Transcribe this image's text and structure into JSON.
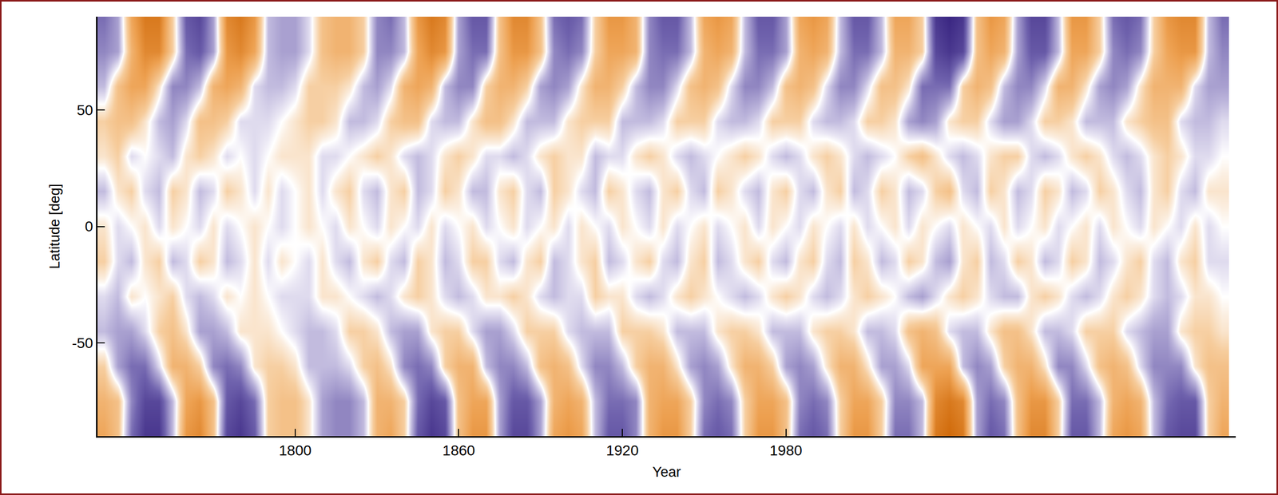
{
  "chart_data": {
    "type": "heatmap",
    "x_label": "Year",
    "y_label": "Latitude [deg]",
    "xlim": [
      1727.5,
      2145
    ],
    "xticks": [
      1800,
      1860,
      1920,
      1980
    ],
    "ylim": [
      -90,
      90
    ],
    "yticks": [
      -50,
      0,
      50
    ],
    "grid": false,
    "zlim": [
      -9,
      9
    ],
    "x": [
      1730,
      1735,
      1740,
      1745,
      1750,
      1755,
      1760,
      1765,
      1770,
      1775,
      1780,
      1785,
      1790,
      1795,
      1800,
      1805,
      1810,
      1815,
      1820,
      1825,
      1830,
      1835,
      1840,
      1845,
      1850,
      1855,
      1860,
      1865,
      1870,
      1875,
      1880,
      1885,
      1890,
      1895,
      1900,
      1905,
      1910,
      1915,
      1920,
      1925,
      1930,
      1935,
      1940,
      1945,
      1950,
      1955,
      1960,
      1965,
      1970,
      1975,
      1980,
      1985,
      1990,
      1995,
      2000,
      2005,
      2010,
      2015,
      2020,
      2025,
      2030,
      2035,
      2040,
      2045,
      2050,
      2055,
      2060,
      2065,
      2070,
      2075,
      2080,
      2085,
      2090,
      2095,
      2100,
      2105,
      2110,
      2115,
      2120,
      2125,
      2130,
      2135,
      2140
    ],
    "y": [
      -90,
      -75,
      -60,
      -45,
      -30,
      -15,
      0,
      15,
      30,
      45,
      60,
      75,
      90
    ],
    "z": [
      [
        5,
        3,
        -5,
        -8,
        -8,
        -2,
        6,
        7,
        3,
        -7,
        -8,
        -6,
        2,
        3,
        3,
        1,
        -3,
        -4,
        -4,
        -2,
        4,
        5,
        2,
        -6,
        -8,
        -7,
        3,
        6,
        6,
        -3,
        -7,
        -7,
        -3,
        5,
        6,
        5,
        -2,
        -6,
        -6,
        -4,
        4,
        6,
        6,
        2,
        -5,
        -6,
        -5,
        2,
        6,
        6,
        3,
        -5,
        -6,
        -5,
        2,
        6,
        6,
        2,
        -5,
        -5,
        -2,
        8,
        9,
        8,
        -3,
        -6,
        -5,
        3,
        7,
        7,
        2,
        -6,
        -6,
        -2,
        5,
        6,
        5,
        -2,
        -6,
        -7,
        -7,
        2,
        5
      ],
      [
        4,
        3,
        -4,
        -7,
        -7,
        -2,
        5,
        6,
        3,
        -6,
        -7,
        -5,
        2,
        3,
        3,
        1,
        -3,
        -4,
        -4,
        -2,
        4,
        4,
        2,
        -5,
        -7,
        -6,
        3,
        5,
        5,
        -3,
        -6,
        -6,
        -3,
        4,
        5,
        4,
        -2,
        -5,
        -5,
        -4,
        4,
        5,
        5,
        2,
        -4,
        -5,
        -4,
        2,
        5,
        5,
        3,
        -4,
        -5,
        -4,
        2,
        5,
        5,
        2,
        -4,
        -4,
        -2,
        7,
        8,
        7,
        -3,
        -5,
        -4,
        3,
        6,
        6,
        2,
        -5,
        -5,
        -2,
        4,
        5,
        4,
        -2,
        -5,
        -6,
        -6,
        2,
        4
      ],
      [
        2,
        -3,
        -5,
        -5,
        -1,
        4,
        4,
        2,
        -4,
        -5,
        -4,
        1,
        2,
        2,
        1,
        -2,
        -2,
        -2,
        -1,
        2,
        3,
        1,
        -4,
        -5,
        -4,
        2,
        4,
        4,
        -2,
        -4,
        -4,
        -2,
        3,
        4,
        3,
        -1,
        -4,
        -4,
        -2,
        2,
        4,
        4,
        1,
        -3,
        -4,
        -3,
        1,
        4,
        4,
        2,
        -3,
        -4,
        -3,
        1,
        4,
        4,
        1,
        -3,
        -3,
        -1,
        5,
        5,
        5,
        -2,
        -4,
        -3,
        2,
        4,
        4,
        1,
        -4,
        -4,
        -1,
        3,
        4,
        3,
        -1,
        -4,
        -4,
        -4,
        1,
        3,
        3
      ],
      [
        -2,
        -3,
        -3,
        -1,
        2,
        3,
        1,
        -3,
        -3,
        -2,
        1,
        1,
        1,
        0,
        -1,
        -2,
        -2,
        -1,
        2,
        2,
        1,
        -2,
        -3,
        -3,
        1,
        2,
        2,
        -1,
        -3,
        -3,
        -1,
        2,
        2,
        2,
        -1,
        -2,
        -2,
        -2,
        2,
        2,
        2,
        1,
        -2,
        -2,
        -2,
        1,
        2,
        2,
        1,
        -2,
        -2,
        -2,
        1,
        2,
        2,
        1,
        -2,
        -2,
        -1,
        3,
        4,
        3,
        -1,
        -2,
        -2,
        1,
        3,
        3,
        1,
        -2,
        -2,
        -1,
        2,
        2,
        2,
        -1,
        -2,
        -3,
        -3,
        1,
        2,
        2,
        1
      ],
      [
        -1,
        -2,
        1,
        0,
        1,
        2,
        -1,
        -2,
        -1,
        1,
        0,
        1,
        0,
        -1,
        -1,
        -1,
        1,
        1,
        0,
        -1,
        -2,
        -1,
        1,
        2,
        1,
        -1,
        -2,
        -1,
        1,
        1,
        2,
        1,
        -1,
        -2,
        -1,
        -1,
        2,
        1,
        1,
        -1,
        -2,
        -1,
        1,
        2,
        1,
        0,
        -1,
        -2,
        -1,
        1,
        2,
        1,
        -1,
        -2,
        -1,
        1,
        2,
        1,
        0,
        -2,
        -3,
        -1,
        1,
        2,
        1,
        -1,
        -2,
        -2,
        1,
        2,
        1,
        -1,
        -2,
        -1,
        1,
        2,
        1,
        -1,
        -2,
        -1,
        1,
        1,
        0
      ],
      [
        2,
        -1,
        -2,
        1,
        2,
        -2,
        -1,
        2,
        1,
        -2,
        -1,
        1,
        -1,
        1,
        0,
        -1,
        1,
        -1,
        -2,
        1,
        2,
        -1,
        -2,
        2,
        1,
        -2,
        -1,
        2,
        2,
        -1,
        -2,
        1,
        2,
        -2,
        -1,
        1,
        2,
        -2,
        -1,
        1,
        2,
        -1,
        -2,
        1,
        2,
        -2,
        -1,
        1,
        2,
        -1,
        -2,
        1,
        2,
        -1,
        -2,
        2,
        1,
        -2,
        -1,
        2,
        1,
        -2,
        -3,
        1,
        2,
        -2,
        -1,
        2,
        1,
        -2,
        -1,
        2,
        1,
        -2,
        -1,
        1,
        2,
        -1,
        -2,
        1,
        2,
        -1,
        -1
      ],
      [
        1,
        -1,
        0,
        1,
        -1,
        1,
        0,
        -1,
        1,
        -1,
        0,
        1,
        0,
        -1,
        0,
        1,
        0,
        -1,
        1,
        0,
        -1,
        1,
        0,
        -1,
        1,
        -1,
        0,
        1,
        -1,
        0,
        1,
        -1,
        0,
        1,
        -1,
        1,
        0,
        -1,
        1,
        0,
        -1,
        1,
        -1,
        0,
        1,
        -1,
        0,
        1,
        -1,
        1,
        0,
        -1,
        1,
        0,
        -1,
        1,
        -1,
        0,
        1,
        -1,
        1,
        0,
        -1,
        1,
        0,
        -1,
        1,
        -1,
        0,
        1,
        -1,
        0,
        1,
        -1,
        1,
        0,
        -1,
        1,
        0,
        -1,
        1,
        -1,
        0
      ],
      [
        -2,
        1,
        2,
        -1,
        -2,
        2,
        1,
        -2,
        -1,
        2,
        1,
        -1,
        1,
        -1,
        0,
        1,
        -1,
        1,
        2,
        -1,
        -2,
        1,
        2,
        -2,
        -1,
        2,
        1,
        -2,
        -2,
        1,
        2,
        -1,
        -2,
        2,
        1,
        -1,
        -2,
        2,
        1,
        -1,
        -2,
        1,
        2,
        -1,
        -2,
        2,
        1,
        -1,
        -2,
        1,
        2,
        -1,
        -2,
        1,
        2,
        -2,
        -1,
        2,
        1,
        -2,
        -1,
        2,
        3,
        -1,
        -2,
        2,
        1,
        -2,
        -1,
        2,
        1,
        -2,
        -1,
        2,
        1,
        -1,
        -2,
        1,
        2,
        -1,
        -2,
        1,
        1
      ],
      [
        1,
        2,
        -1,
        0,
        -1,
        -2,
        1,
        2,
        1,
        -1,
        0,
        -1,
        0,
        1,
        1,
        1,
        -1,
        -1,
        0,
        1,
        2,
        1,
        -1,
        -2,
        -1,
        1,
        2,
        1,
        -1,
        -1,
        -2,
        -1,
        1,
        2,
        1,
        1,
        -2,
        -1,
        -1,
        1,
        2,
        1,
        -1,
        -2,
        -1,
        0,
        1,
        2,
        1,
        -1,
        -2,
        -1,
        1,
        2,
        1,
        -1,
        -2,
        -1,
        0,
        2,
        3,
        1,
        -1,
        -2,
        -1,
        1,
        2,
        2,
        -1,
        -2,
        -1,
        1,
        2,
        1,
        -1,
        -2,
        -1,
        1,
        2,
        1,
        -1,
        -1,
        0
      ],
      [
        2,
        3,
        3,
        1,
        -2,
        -3,
        -1,
        3,
        3,
        2,
        -1,
        -1,
        -1,
        0,
        1,
        2,
        2,
        1,
        -2,
        -2,
        -1,
        2,
        3,
        3,
        -1,
        -2,
        -2,
        1,
        3,
        3,
        1,
        -2,
        -2,
        -2,
        1,
        2,
        2,
        2,
        -2,
        -2,
        -2,
        -1,
        2,
        2,
        2,
        -1,
        -2,
        -2,
        -1,
        2,
        2,
        2,
        -1,
        -2,
        -2,
        -1,
        2,
        2,
        1,
        -3,
        -4,
        -3,
        1,
        2,
        2,
        -1,
        -3,
        -3,
        -1,
        2,
        2,
        1,
        -2,
        -2,
        -2,
        1,
        2,
        3,
        3,
        -1,
        -2,
        -2,
        -1
      ],
      [
        -2,
        3,
        5,
        5,
        1,
        -4,
        -4,
        -2,
        4,
        5,
        4,
        -1,
        -2,
        -2,
        -1,
        2,
        2,
        2,
        1,
        -2,
        -3,
        -1,
        4,
        5,
        4,
        -2,
        -4,
        -4,
        2,
        4,
        4,
        2,
        -3,
        -4,
        -3,
        1,
        4,
        4,
        2,
        -2,
        -4,
        -4,
        -1,
        3,
        4,
        3,
        -1,
        -4,
        -4,
        -2,
        3,
        4,
        3,
        -1,
        -4,
        -4,
        -1,
        3,
        3,
        1,
        -5,
        -5,
        -5,
        2,
        4,
        3,
        -2,
        -4,
        -4,
        -1,
        4,
        4,
        1,
        -3,
        -4,
        -3,
        1,
        4,
        4,
        4,
        -1,
        -3,
        -3
      ],
      [
        -4,
        -3,
        4,
        7,
        7,
        2,
        -5,
        -6,
        -3,
        6,
        7,
        5,
        -2,
        -3,
        -3,
        -1,
        3,
        4,
        4,
        2,
        -4,
        -4,
        -2,
        5,
        7,
        6,
        -3,
        -5,
        -5,
        3,
        6,
        6,
        3,
        -4,
        -5,
        -4,
        2,
        5,
        5,
        4,
        -4,
        -5,
        -5,
        -2,
        4,
        5,
        4,
        -2,
        -5,
        -5,
        -3,
        4,
        5,
        4,
        -2,
        -5,
        -5,
        -2,
        4,
        4,
        2,
        -7,
        -8,
        -7,
        3,
        5,
        4,
        -3,
        -6,
        -6,
        -2,
        5,
        5,
        2,
        -4,
        -5,
        -4,
        2,
        5,
        6,
        6,
        -2,
        -4
      ],
      [
        -5,
        -3,
        5,
        8,
        8,
        2,
        -6,
        -7,
        -3,
        7,
        8,
        6,
        -2,
        -3,
        -3,
        -1,
        3,
        4,
        4,
        2,
        -4,
        -5,
        -2,
        6,
        8,
        7,
        -3,
        -6,
        -6,
        3,
        7,
        7,
        3,
        -5,
        -6,
        -5,
        2,
        6,
        6,
        4,
        -4,
        -6,
        -6,
        -2,
        5,
        6,
        5,
        -2,
        -6,
        -6,
        -3,
        5,
        6,
        5,
        -2,
        -6,
        -6,
        -2,
        5,
        5,
        2,
        -8,
        -9,
        -8,
        3,
        6,
        5,
        -3,
        -7,
        -7,
        -2,
        6,
        6,
        2,
        -5,
        -6,
        -5,
        2,
        6,
        7,
        7,
        -2,
        -5
      ]
    ]
  }
}
